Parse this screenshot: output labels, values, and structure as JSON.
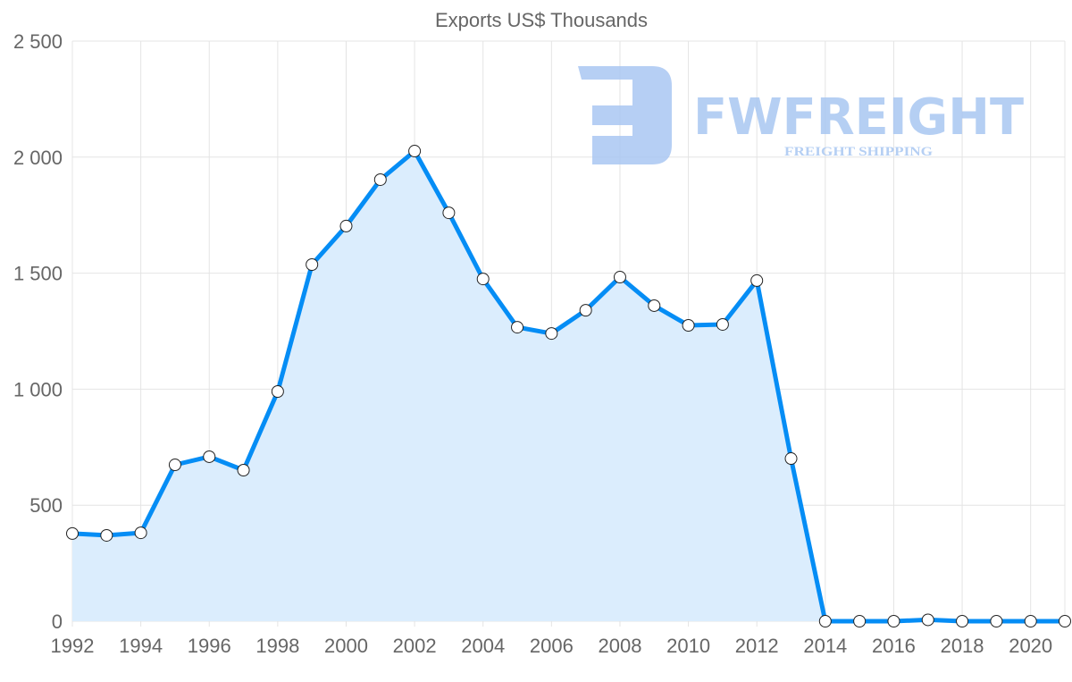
{
  "chart_data": {
    "type": "area",
    "title": "Exports US$ Thousands",
    "xlabel": "",
    "ylabel": "",
    "x": [
      1992,
      1993,
      1994,
      1995,
      1996,
      1997,
      1998,
      1999,
      2000,
      2001,
      2002,
      2003,
      2004,
      2005,
      2006,
      2007,
      2008,
      2009,
      2010,
      2011,
      2012,
      2013,
      2014,
      2015,
      2016,
      2017,
      2018,
      2019,
      2020,
      2021
    ],
    "series": [
      {
        "name": "Exports US$ Thousands",
        "values": [
          378,
          370,
          381,
          674,
          709,
          651,
          990,
          1537,
          1703,
          1903,
          2026,
          1760,
          1475,
          1267,
          1240,
          1340,
          1483,
          1360,
          1275,
          1279,
          1468,
          701,
          0,
          0,
          0,
          6,
          0,
          0,
          0,
          0
        ]
      }
    ],
    "xlim": [
      1992,
      2021
    ],
    "ylim": [
      0,
      2500
    ],
    "x_ticks": [
      "1992",
      "1994",
      "1996",
      "1998",
      "2000",
      "2002",
      "2004",
      "2006",
      "2008",
      "2010",
      "2012",
      "2014",
      "2016",
      "2018",
      "2020"
    ],
    "y_ticks": [
      "0",
      "500",
      "1 000",
      "1 500",
      "2 000",
      "2 500"
    ],
    "grid": true,
    "legend": "none",
    "colors": {
      "line": "#058DF5",
      "fill": "#DBEDFD",
      "grid": "#e4e4e4"
    }
  },
  "watermark": {
    "brand": "FWFREIGHT",
    "tagline": "FREIGHT SHIPPING",
    "color": "#A9C7F2"
  }
}
